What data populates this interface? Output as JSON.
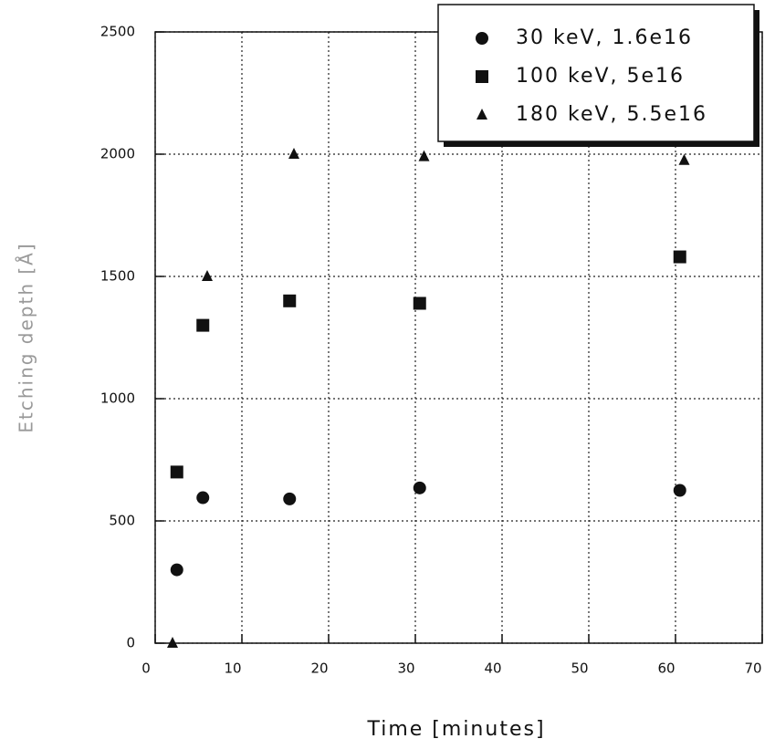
{
  "chart_data": {
    "type": "scatter",
    "xlabel": "Time [minutes]",
    "ylabel": "Etching depth [Å]",
    "xlim": [
      0,
      70
    ],
    "xticks": [
      0,
      10,
      20,
      30,
      40,
      50,
      60,
      70
    ],
    "ylim": [
      0,
      2500
    ],
    "yticks": [
      0,
      500,
      1000,
      1500,
      2000,
      2500
    ],
    "grid": true,
    "legend": "upper right",
    "series": [
      {
        "name": "30 keV, 1.6e16",
        "color": "#111111",
        "marker": "circle",
        "x": [
          2.5,
          5.5,
          15.5,
          30.5,
          60.5
        ],
        "values": [
          300,
          595,
          590,
          635,
          625
        ]
      },
      {
        "name": "100 keV, 5e16",
        "color": "#111111",
        "marker": "square",
        "x": [
          2.5,
          5.5,
          15.5,
          30.5,
          60.5
        ],
        "values": [
          700,
          1300,
          1400,
          1390,
          1580
        ]
      },
      {
        "name": "180 keV, 5.5e16",
        "color": "#111111",
        "marker": "triangle",
        "x": [
          2,
          6,
          16,
          31,
          61
        ],
        "values": [
          0,
          1500,
          2000,
          1990,
          1975
        ]
      }
    ]
  }
}
